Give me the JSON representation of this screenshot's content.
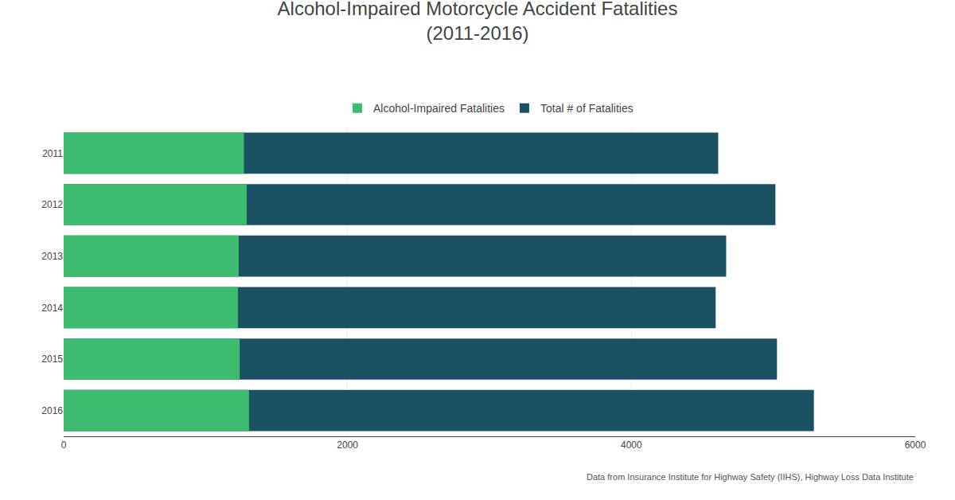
{
  "chart_data": {
    "type": "bar",
    "orientation": "horizontal",
    "title": "Alcohol-Impaired Motorcycle Accident Fatalities",
    "subtitle": "(2011-2016)",
    "annotations": [
      "Data from Insurance Institute for Highway Safety (IIHS), Highway Loss Data Institute"
    ],
    "categories": [
      "2011",
      "2012",
      "2013",
      "2014",
      "2015",
      "2016"
    ],
    "series": [
      {
        "name": "Total # of Fatalities",
        "color": "#1a5263",
        "values": [
          4612,
          5015,
          4668,
          4594,
          5026,
          5286
        ]
      },
      {
        "name": "Alcohol-Impaired Fatalities",
        "color": "#3dbb6e",
        "values": [
          1270,
          1290,
          1233,
          1228,
          1240,
          1306
        ]
      }
    ],
    "xlim": [
      0,
      6000
    ],
    "xticks": [
      0,
      2000,
      4000,
      6000
    ],
    "grid": true,
    "legend": "top"
  }
}
